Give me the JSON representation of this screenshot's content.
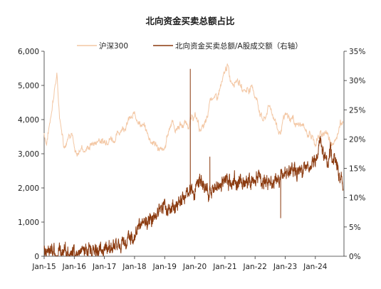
{
  "chart_data": {
    "type": "line",
    "title": "北向资金买卖总额占比",
    "xlabel": "",
    "ylabel_left": "",
    "ylabel_right": "",
    "x_ticks": [
      "Jan-15",
      "Jan-16",
      "Jan-17",
      "Jan-18",
      "Jan-19",
      "Jan-20",
      "Jan-21",
      "Jan-22",
      "Jan-23",
      "Jan-24"
    ],
    "y_left_ticks": [
      "0",
      "1,000",
      "2,000",
      "3,000",
      "4,000",
      "5,000",
      "6,000"
    ],
    "y_right_ticks": [
      "0%",
      "5%",
      "10%",
      "15%",
      "20%",
      "25%",
      "30%",
      "35%"
    ],
    "y_left_range": [
      0,
      6000
    ],
    "y_right_range": [
      0,
      35
    ],
    "x_range": [
      2015.0,
      2024.95
    ],
    "legend_position": "top",
    "grid": false,
    "series": [
      {
        "name": "沪深300",
        "axis": "left",
        "color": "#f3c7a4",
        "points": [
          [
            2015.0,
            3600
          ],
          [
            2015.08,
            3300
          ],
          [
            2015.17,
            3800
          ],
          [
            2015.25,
            4300
          ],
          [
            2015.33,
            4800
          ],
          [
            2015.42,
            5300
          ],
          [
            2015.5,
            4200
          ],
          [
            2015.58,
            3700
          ],
          [
            2015.67,
            3200
          ],
          [
            2015.75,
            3400
          ],
          [
            2015.83,
            3600
          ],
          [
            2015.92,
            3650
          ],
          [
            2016.0,
            3100
          ],
          [
            2016.08,
            2900
          ],
          [
            2016.17,
            3100
          ],
          [
            2016.25,
            3200
          ],
          [
            2016.33,
            3100
          ],
          [
            2016.42,
            3150
          ],
          [
            2016.5,
            3200
          ],
          [
            2016.58,
            3300
          ],
          [
            2016.67,
            3300
          ],
          [
            2016.75,
            3350
          ],
          [
            2016.83,
            3450
          ],
          [
            2016.92,
            3350
          ],
          [
            2017.0,
            3350
          ],
          [
            2017.08,
            3420
          ],
          [
            2017.17,
            3450
          ],
          [
            2017.25,
            3450
          ],
          [
            2017.33,
            3400
          ],
          [
            2017.42,
            3550
          ],
          [
            2017.5,
            3650
          ],
          [
            2017.58,
            3750
          ],
          [
            2017.67,
            3800
          ],
          [
            2017.75,
            3850
          ],
          [
            2017.83,
            4050
          ],
          [
            2017.92,
            4000
          ],
          [
            2018.0,
            4200
          ],
          [
            2018.08,
            4050
          ],
          [
            2018.17,
            3900
          ],
          [
            2018.25,
            3800
          ],
          [
            2018.33,
            3800
          ],
          [
            2018.42,
            3600
          ],
          [
            2018.5,
            3450
          ],
          [
            2018.58,
            3350
          ],
          [
            2018.67,
            3300
          ],
          [
            2018.75,
            3200
          ],
          [
            2018.83,
            3150
          ],
          [
            2018.92,
            3050
          ],
          [
            2019.0,
            3100
          ],
          [
            2019.08,
            3500
          ],
          [
            2019.17,
            3800
          ],
          [
            2019.25,
            4000
          ],
          [
            2019.33,
            3700
          ],
          [
            2019.42,
            3750
          ],
          [
            2019.5,
            3850
          ],
          [
            2019.58,
            3800
          ],
          [
            2019.67,
            3900
          ],
          [
            2019.75,
            3850
          ],
          [
            2019.83,
            3900
          ],
          [
            2019.92,
            4050
          ],
          [
            2020.0,
            4100
          ],
          [
            2020.08,
            4000
          ],
          [
            2020.17,
            3700
          ],
          [
            2020.25,
            3750
          ],
          [
            2020.33,
            3850
          ],
          [
            2020.42,
            4000
          ],
          [
            2020.5,
            4600
          ],
          [
            2020.58,
            4700
          ],
          [
            2020.67,
            4600
          ],
          [
            2020.75,
            4650
          ],
          [
            2020.83,
            4900
          ],
          [
            2020.92,
            5100
          ],
          [
            2021.0,
            5400
          ],
          [
            2021.08,
            5600
          ],
          [
            2021.17,
            5200
          ],
          [
            2021.25,
            5100
          ],
          [
            2021.33,
            5150
          ],
          [
            2021.42,
            5200
          ],
          [
            2021.5,
            5000
          ],
          [
            2021.58,
            4900
          ],
          [
            2021.67,
            4850
          ],
          [
            2021.75,
            4900
          ],
          [
            2021.83,
            4900
          ],
          [
            2021.92,
            4950
          ],
          [
            2022.0,
            4700
          ],
          [
            2022.08,
            4500
          ],
          [
            2022.17,
            4200
          ],
          [
            2022.25,
            4000
          ],
          [
            2022.33,
            4000
          ],
          [
            2022.42,
            4300
          ],
          [
            2022.5,
            4400
          ],
          [
            2022.58,
            4150
          ],
          [
            2022.67,
            4000
          ],
          [
            2022.75,
            3700
          ],
          [
            2022.83,
            3600
          ],
          [
            2022.92,
            3900
          ],
          [
            2023.0,
            4100
          ],
          [
            2023.08,
            4100
          ],
          [
            2023.17,
            4000
          ],
          [
            2023.25,
            4050
          ],
          [
            2023.33,
            3900
          ],
          [
            2023.42,
            3850
          ],
          [
            2023.5,
            3850
          ],
          [
            2023.58,
            3800
          ],
          [
            2023.67,
            3700
          ],
          [
            2023.75,
            3600
          ],
          [
            2023.83,
            3550
          ],
          [
            2023.92,
            3450
          ],
          [
            2024.0,
            3300
          ],
          [
            2024.08,
            3450
          ],
          [
            2024.17,
            3550
          ],
          [
            2024.25,
            3600
          ],
          [
            2024.33,
            3650
          ],
          [
            2024.42,
            3550
          ],
          [
            2024.5,
            3400
          ],
          [
            2024.58,
            3350
          ],
          [
            2024.67,
            3300
          ],
          [
            2024.75,
            3650
          ],
          [
            2024.83,
            4000
          ],
          [
            2024.92,
            3900
          ]
        ]
      },
      {
        "name": "北向资金买卖总额/A股成交额（右轴）",
        "axis": "right",
        "color": "#8b3a0f",
        "points": [
          [
            2015.0,
            0.9
          ],
          [
            2015.25,
            0.7
          ],
          [
            2015.5,
            0.6
          ],
          [
            2015.75,
            0.5
          ],
          [
            2016.0,
            0.6
          ],
          [
            2016.25,
            0.7
          ],
          [
            2016.5,
            0.8
          ],
          [
            2016.75,
            1.0
          ],
          [
            2017.0,
            1.2
          ],
          [
            2017.25,
            1.4
          ],
          [
            2017.5,
            1.7
          ],
          [
            2017.75,
            2.5
          ],
          [
            2018.0,
            3.8
          ],
          [
            2018.25,
            5.0
          ],
          [
            2018.5,
            6.5
          ],
          [
            2018.75,
            7.5
          ],
          [
            2018.92,
            8.8
          ],
          [
            2019.0,
            8.5
          ],
          [
            2019.17,
            7.8
          ],
          [
            2019.33,
            8.5
          ],
          [
            2019.5,
            9.0
          ],
          [
            2019.67,
            10.0
          ],
          [
            2019.83,
            11.0
          ],
          [
            2019.92,
            11.5
          ],
          [
            2020.0,
            10.5
          ],
          [
            2020.17,
            13.0
          ],
          [
            2020.33,
            12.0
          ],
          [
            2020.5,
            11.0
          ],
          [
            2020.67,
            11.5
          ],
          [
            2020.83,
            12.0
          ],
          [
            2021.0,
            13.0
          ],
          [
            2021.17,
            12.5
          ],
          [
            2021.33,
            13.0
          ],
          [
            2021.5,
            12.5
          ],
          [
            2021.67,
            13.0
          ],
          [
            2021.83,
            12.8
          ],
          [
            2022.0,
            13.0
          ],
          [
            2022.17,
            13.5
          ],
          [
            2022.33,
            12.5
          ],
          [
            2022.5,
            12.5
          ],
          [
            2022.67,
            13.0
          ],
          [
            2022.83,
            13.2
          ],
          [
            2023.0,
            14.0
          ],
          [
            2023.17,
            14.5
          ],
          [
            2023.33,
            14.0
          ],
          [
            2023.5,
            14.5
          ],
          [
            2023.67,
            15.0
          ],
          [
            2023.83,
            15.5
          ],
          [
            2024.0,
            16.0
          ],
          [
            2024.08,
            17.0
          ],
          [
            2024.17,
            19.5
          ],
          [
            2024.25,
            18.0
          ],
          [
            2024.33,
            17.0
          ],
          [
            2024.42,
            16.0
          ],
          [
            2024.5,
            18.5
          ],
          [
            2024.58,
            16.5
          ],
          [
            2024.67,
            17.0
          ],
          [
            2024.75,
            14.5
          ],
          [
            2024.83,
            13.5
          ],
          [
            2024.92,
            11.5
          ]
        ],
        "spikes": [
          [
            2019.85,
            32
          ],
          [
            2020.5,
            17
          ],
          [
            2022.85,
            6.5
          ]
        ]
      }
    ]
  }
}
